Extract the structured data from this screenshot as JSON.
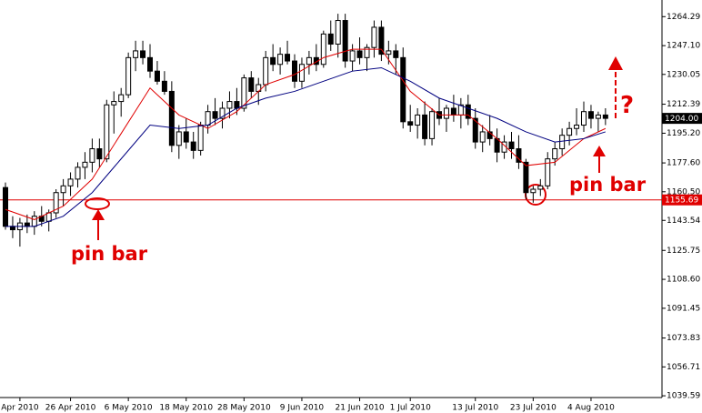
{
  "chart_data": {
    "type": "candlestick",
    "categories": [
      null,
      null,
      "Apr 2010",
      null,
      null,
      null,
      null,
      null,
      null,
      "26 Apr 2010",
      null,
      null,
      null,
      null,
      null,
      null,
      null,
      "6 May 2010",
      null,
      null,
      null,
      null,
      null,
      null,
      null,
      "18 May 2010",
      null,
      null,
      null,
      null,
      null,
      null,
      null,
      "28 May 2010",
      null,
      null,
      null,
      null,
      null,
      null,
      null,
      "9 Jun 2010",
      null,
      null,
      null,
      null,
      null,
      null,
      null,
      "21 Jun 2010",
      null,
      null,
      null,
      null,
      null,
      null,
      "1 Jul 2010",
      null,
      null,
      null,
      null,
      null,
      null,
      null,
      null,
      "13 Jul 2010",
      null,
      null,
      null,
      null,
      null,
      null,
      null,
      "23 Jul 2010",
      null,
      null,
      null,
      null,
      null,
      null,
      null,
      "4 Aug 2010",
      null,
      null
    ],
    "open": [
      1163,
      1140,
      1138,
      1142,
      1140,
      1146,
      1143,
      1148,
      1160,
      1164,
      1168,
      1175,
      1178,
      1186,
      1180,
      1212,
      1214,
      1218,
      1240,
      1244,
      1240,
      1232,
      1226,
      1220,
      1188,
      1196,
      1190,
      1185,
      1200,
      1208,
      1204,
      1210,
      1214,
      1210,
      1228,
      1220,
      1224,
      1240,
      1236,
      1242,
      1238,
      1226,
      1236,
      1240,
      1236,
      1254,
      1248,
      1262,
      1238,
      1244,
      1240,
      1246,
      1258,
      1242,
      1244,
      1240,
      1202,
      1200,
      1206,
      1192,
      1208,
      1204,
      1210,
      1206,
      1212,
      1204,
      1190,
      1196,
      1192,
      1184,
      1190,
      1186,
      1178,
      1160,
      1162,
      1164,
      1180,
      1186,
      1194,
      1198,
      1200,
      1208,
      1204,
      1206
    ],
    "high": [
      1166,
      1146,
      1145,
      1147,
      1149,
      1152,
      1150,
      1162,
      1168,
      1172,
      1178,
      1184,
      1192,
      1192,
      1215,
      1220,
      1222,
      1243,
      1250,
      1250,
      1248,
      1238,
      1232,
      1226,
      1200,
      1204,
      1196,
      1202,
      1212,
      1216,
      1214,
      1220,
      1222,
      1230,
      1232,
      1228,
      1244,
      1248,
      1246,
      1250,
      1242,
      1240,
      1244,
      1248,
      1256,
      1262,
      1266,
      1266,
      1248,
      1252,
      1248,
      1262,
      1262,
      1250,
      1248,
      1246,
      1212,
      1210,
      1214,
      1210,
      1216,
      1212,
      1218,
      1216,
      1218,
      1210,
      1200,
      1206,
      1198,
      1194,
      1196,
      1194,
      1180,
      1164,
      1168,
      1184,
      1190,
      1198,
      1202,
      1210,
      1214,
      1212,
      1208,
      1210
    ],
    "low": [
      1138,
      1133,
      1128,
      1136,
      1135,
      1140,
      1137,
      1145,
      1152,
      1158,
      1163,
      1168,
      1172,
      1175,
      1178,
      1195,
      1205,
      1216,
      1232,
      1236,
      1228,
      1224,
      1218,
      1184,
      1180,
      1186,
      1180,
      1182,
      1195,
      1200,
      1198,
      1204,
      1206,
      1208,
      1216,
      1212,
      1220,
      1232,
      1230,
      1236,
      1222,
      1222,
      1230,
      1232,
      1234,
      1244,
      1240,
      1234,
      1232,
      1236,
      1232,
      1240,
      1238,
      1236,
      1230,
      1198,
      1196,
      1192,
      1188,
      1188,
      1200,
      1196,
      1202,
      1198,
      1200,
      1186,
      1184,
      1188,
      1178,
      1180,
      1180,
      1174,
      1156,
      1154,
      1158,
      1162,
      1176,
      1182,
      1188,
      1194,
      1196,
      1198,
      1196,
      1200
    ],
    "close": [
      1140,
      1138,
      1142,
      1140,
      1146,
      1143,
      1148,
      1160,
      1164,
      1168,
      1175,
      1178,
      1186,
      1180,
      1212,
      1214,
      1218,
      1240,
      1244,
      1240,
      1232,
      1226,
      1220,
      1188,
      1196,
      1190,
      1185,
      1200,
      1208,
      1204,
      1210,
      1214,
      1210,
      1228,
      1220,
      1224,
      1240,
      1236,
      1242,
      1238,
      1226,
      1236,
      1240,
      1236,
      1254,
      1248,
      1262,
      1238,
      1244,
      1240,
      1246,
      1258,
      1242,
      1244,
      1240,
      1202,
      1200,
      1206,
      1192,
      1208,
      1204,
      1210,
      1206,
      1212,
      1204,
      1190,
      1196,
      1192,
      1184,
      1190,
      1186,
      1178,
      1160,
      1162,
      1164,
      1180,
      1186,
      1194,
      1198,
      1200,
      1208,
      1204,
      1206,
      1204
    ],
    "up_color": "#ffffff",
    "down_color": "#000000",
    "moving_averages": [
      {
        "color": "#e00000",
        "x": [
          0,
          4,
          8,
          12,
          16,
          20,
          24,
          28,
          32,
          36,
          40,
          44,
          48,
          52,
          56,
          60,
          64,
          68,
          72,
          76,
          80,
          83
        ],
        "values": [
          1150,
          1144,
          1152,
          1168,
          1195,
          1222,
          1206,
          1198,
          1208,
          1224,
          1230,
          1240,
          1245,
          1245,
          1220,
          1206,
          1206,
          1192,
          1176,
          1178,
          1192,
          1198
        ]
      },
      {
        "color": "#000080",
        "x": [
          0,
          4,
          8,
          12,
          16,
          20,
          24,
          28,
          32,
          36,
          40,
          44,
          48,
          52,
          56,
          60,
          64,
          68,
          72,
          76,
          80,
          83
        ],
        "values": [
          1140,
          1140,
          1146,
          1160,
          1180,
          1200,
          1198,
          1200,
          1210,
          1216,
          1220,
          1226,
          1232,
          1234,
          1226,
          1216,
          1210,
          1204,
          1196,
          1190,
          1192,
          1196
        ]
      }
    ],
    "ylim": [
      1038.55,
      1274.15
    ],
    "yticks": [
      {
        "value": 1264.29,
        "label": "1264.29"
      },
      {
        "value": 1247.1,
        "label": "1247.10"
      },
      {
        "value": 1230.05,
        "label": "1230.05"
      },
      {
        "value": 1212.39,
        "label": "1212.39"
      },
      {
        "value": 1195.2,
        "label": "1195.20"
      },
      {
        "value": 1177.6,
        "label": "1177.60"
      },
      {
        "value": 1160.5,
        "label": "1160.50"
      },
      {
        "value": 1143.54,
        "label": "1143.54"
      },
      {
        "value": 1125.75,
        "label": "1125.75"
      },
      {
        "value": 1108.6,
        "label": "1108.60"
      },
      {
        "value": 1091.45,
        "label": "1091.45"
      },
      {
        "value": 1073.83,
        "label": "1073.83"
      },
      {
        "value": 1056.71,
        "label": "1056.71"
      },
      {
        "value": 1039.59,
        "label": "1039.59"
      }
    ],
    "price_line": {
      "value": 1155.69,
      "label": "1155.69",
      "color": "#e00000"
    },
    "last_price": {
      "value": 1204.0,
      "label": "1204.00"
    },
    "annotations": [
      "pin bar",
      "pin bar",
      "?"
    ]
  }
}
